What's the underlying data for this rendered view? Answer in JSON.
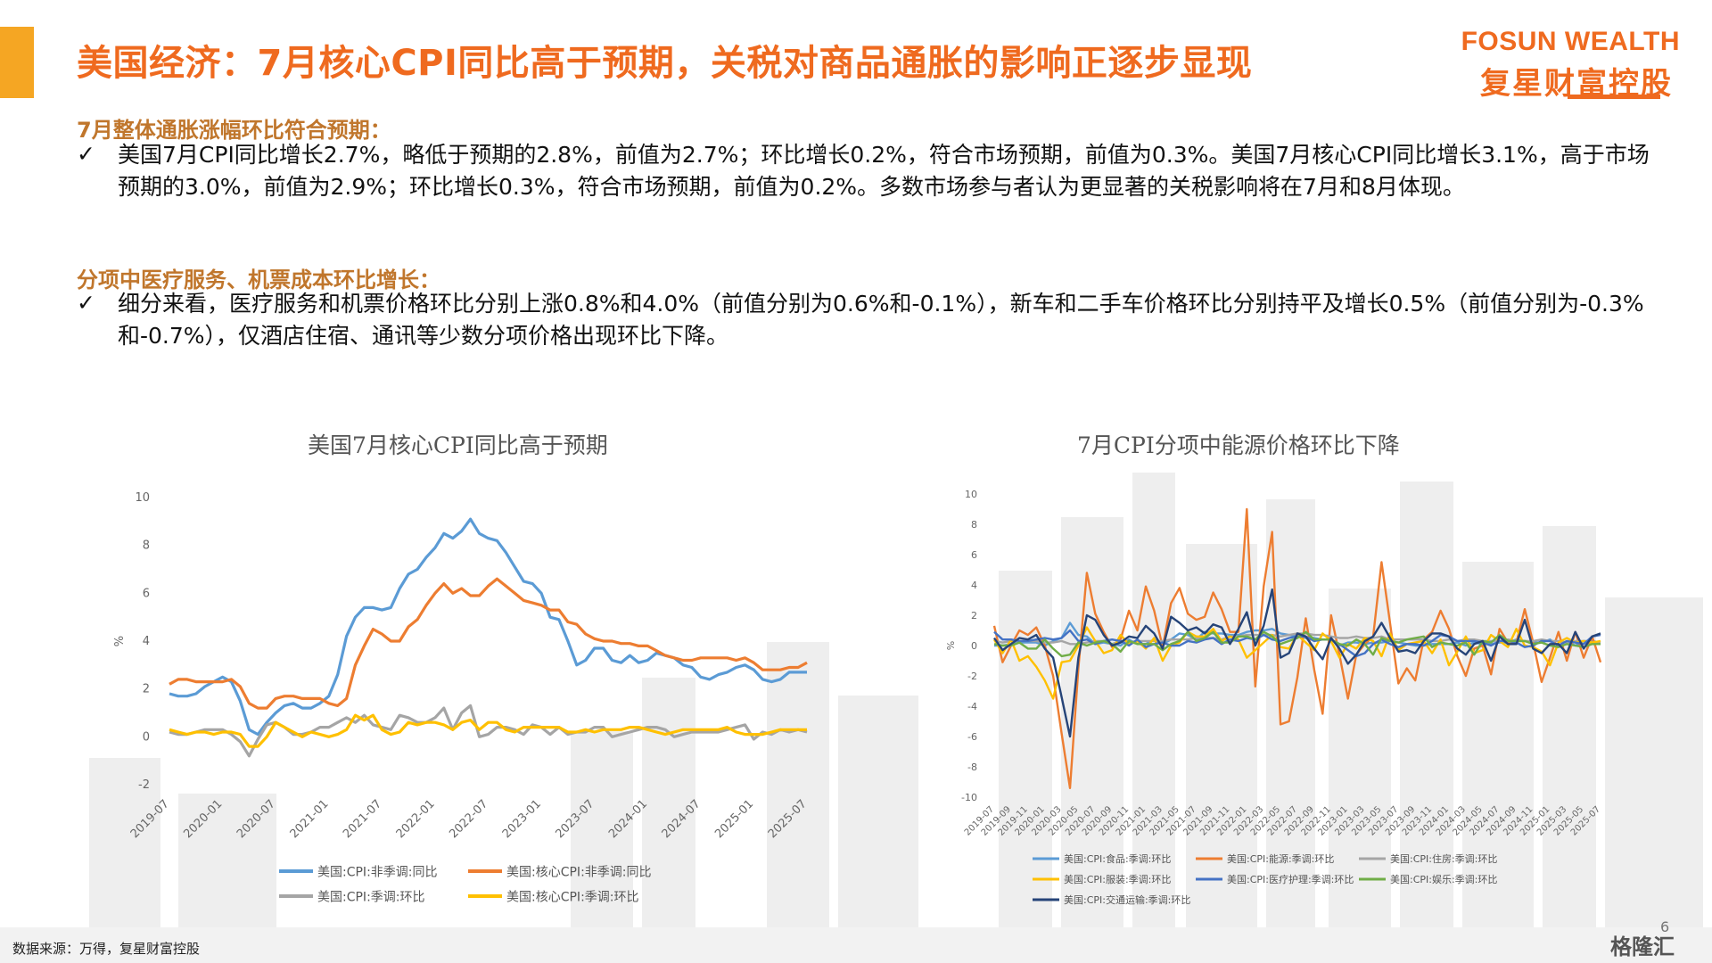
{
  "header": {
    "title": "美国经济：7月核心CPI同比高于预期，关税对商品通胀的影响正逐步显现",
    "brand_en": "FOSUN WEALTH",
    "brand_cn": "复星财富控股",
    "accent_color": "#ef6a1f",
    "bar_color": "#f5a623"
  },
  "sections": [
    {
      "heading": "7月整体通胀涨幅环比符合预期：",
      "check": "✓",
      "text": "美国7月CPI同比增长2.7%，略低于预期的2.8%，前值为2.7%；环比增长0.2%，符合市场预期，前值为0.3%。美国7月核心CPI同比增长3.1%，高于市场预期的3.0%，前值为2.9%；环比增长0.3%，符合市场预期，前值为0.2%。多数市场参与者认为更显著的关税影响将在7月和8月体现。"
    },
    {
      "heading": "分项中医疗服务、机票成本环比增长：",
      "check": "✓",
      "text": "细分来看，医疗服务和机票价格环比分别上涨0.8%和4.0%（前值分别为0.6%和-0.1%），新车和二手车价格环比分别持平及增长0.5%（前值分别为-0.3%和-0.7%），仅酒店住宿、通讯等少数分项价格出现环比下降。"
    }
  ],
  "chart_data": [
    {
      "type": "line",
      "title": "美国7月核心CPI同比高于预期",
      "ylabel": "%",
      "ylim": [
        -2,
        10
      ],
      "yticks": [
        "-2",
        "0",
        "2",
        "4",
        "6",
        "8",
        "10"
      ],
      "x_start": "2019-07",
      "x_end": "2025-07",
      "x_ticks": [
        "2019-07",
        "2020-01",
        "2020-07",
        "2021-01",
        "2021-07",
        "2022-01",
        "2022-07",
        "2023-01",
        "2023-07",
        "2024-01",
        "2024-07",
        "2025-01",
        "2025-07"
      ],
      "legend_position": "bottom",
      "series": [
        {
          "name": "美国:CPI:非季调:同比",
          "color": "#5b9bd5",
          "values": [
            1.8,
            1.7,
            1.7,
            1.8,
            2.1,
            2.3,
            2.5,
            2.3,
            1.5,
            0.3,
            0.1,
            0.6,
            1.0,
            1.3,
            1.4,
            1.2,
            1.2,
            1.4,
            1.7,
            2.6,
            4.2,
            5.0,
            5.4,
            5.4,
            5.3,
            5.4,
            6.2,
            6.8,
            7.0,
            7.5,
            7.9,
            8.5,
            8.3,
            8.6,
            9.1,
            8.5,
            8.3,
            8.2,
            7.7,
            7.1,
            6.5,
            6.4,
            6.0,
            5.0,
            4.9,
            4.0,
            3.0,
            3.2,
            3.7,
            3.7,
            3.2,
            3.1,
            3.4,
            3.1,
            3.2,
            3.5,
            3.4,
            3.3,
            3.0,
            2.9,
            2.5,
            2.4,
            2.6,
            2.7,
            2.9,
            3.0,
            2.8,
            2.4,
            2.3,
            2.4,
            2.7,
            2.7,
            2.7
          ]
        },
        {
          "name": "美国:核心CPI:非季调:同比",
          "color": "#ed7d31",
          "values": [
            2.2,
            2.4,
            2.4,
            2.3,
            2.3,
            2.3,
            2.3,
            2.4,
            2.1,
            1.4,
            1.2,
            1.2,
            1.6,
            1.7,
            1.7,
            1.6,
            1.6,
            1.6,
            1.4,
            1.3,
            1.6,
            3.0,
            3.8,
            4.5,
            4.3,
            4.0,
            4.0,
            4.6,
            4.9,
            5.5,
            6.0,
            6.4,
            6.0,
            6.2,
            5.9,
            5.9,
            6.3,
            6.6,
            6.3,
            6.0,
            5.7,
            5.6,
            5.5,
            5.3,
            5.3,
            4.8,
            4.7,
            4.3,
            4.1,
            4.0,
            4.0,
            3.9,
            3.9,
            3.8,
            3.8,
            3.6,
            3.4,
            3.3,
            3.2,
            3.2,
            3.3,
            3.3,
            3.3,
            3.3,
            3.2,
            3.3,
            3.1,
            2.8,
            2.8,
            2.8,
            2.9,
            2.9,
            3.1
          ]
        },
        {
          "name": "美国:CPI:季调:环比",
          "color": "#a5a5a5",
          "values": [
            0.2,
            0.1,
            0.1,
            0.2,
            0.3,
            0.3,
            0.3,
            0.1,
            -0.2,
            -0.8,
            -0.1,
            0.5,
            0.6,
            0.4,
            0.1,
            0.1,
            0.2,
            0.4,
            0.4,
            0.6,
            0.8,
            0.6,
            0.9,
            0.5,
            0.4,
            0.3,
            0.9,
            0.8,
            0.6,
            0.6,
            0.8,
            1.2,
            0.3,
            1.0,
            1.3,
            0.0,
            0.1,
            0.4,
            0.4,
            0.3,
            0.1,
            0.5,
            0.4,
            0.1,
            0.4,
            0.1,
            0.2,
            0.2,
            0.4,
            0.4,
            0.0,
            0.1,
            0.2,
            0.3,
            0.4,
            0.4,
            0.3,
            0.0,
            0.1,
            0.2,
            0.2,
            0.2,
            0.2,
            0.3,
            0.4,
            0.5,
            -0.1,
            0.2,
            0.1,
            0.3,
            0.2,
            0.3,
            0.2
          ]
        },
        {
          "name": "美国:核心CPI:季调:环比",
          "color": "#ffc000",
          "values": [
            0.3,
            0.2,
            0.1,
            0.2,
            0.2,
            0.1,
            0.2,
            0.2,
            0.1,
            -0.4,
            -0.4,
            0.0,
            0.6,
            0.4,
            0.2,
            0.0,
            0.2,
            0.1,
            0.0,
            0.1,
            0.3,
            0.9,
            0.7,
            0.9,
            0.3,
            0.1,
            0.2,
            0.6,
            0.5,
            0.6,
            0.6,
            0.5,
            0.3,
            0.6,
            0.7,
            0.3,
            0.6,
            0.6,
            0.3,
            0.2,
            0.4,
            0.4,
            0.4,
            0.4,
            0.4,
            0.2,
            0.2,
            0.3,
            0.2,
            0.3,
            0.3,
            0.3,
            0.4,
            0.4,
            0.3,
            0.2,
            0.1,
            0.2,
            0.3,
            0.3,
            0.3,
            0.3,
            0.3,
            0.4,
            0.2,
            0.1,
            0.1,
            0.1,
            0.2,
            0.3,
            0.3,
            0.3,
            0.3
          ]
        }
      ]
    },
    {
      "type": "line",
      "title": "7月CPI分项中能源价格环比下降",
      "ylabel": "%",
      "ylim": [
        -10,
        10
      ],
      "yticks": [
        "-10",
        "-8",
        "-6",
        "-4",
        "-2",
        "0",
        "2",
        "4",
        "6",
        "8",
        "10"
      ],
      "x_start": "2019-07",
      "x_end": "2025-07",
      "x_ticks": [
        "2019-07",
        "2019-09",
        "2019-11",
        "2020-01",
        "2020-03",
        "2020-05",
        "2020-07",
        "2020-09",
        "2020-11",
        "2021-01",
        "2021-03",
        "2021-05",
        "2021-07",
        "2021-09",
        "2021-11",
        "2022-01",
        "2022-03",
        "2022-05",
        "2022-07",
        "2022-09",
        "2022-11",
        "2023-01",
        "2023-03",
        "2023-05",
        "2023-07",
        "2023-09",
        "2023-11",
        "2024-01",
        "2024-03",
        "2024-05",
        "2024-07",
        "2024-09",
        "2024-11",
        "2025-01",
        "2025-03",
        "2025-05",
        "2025-07"
      ],
      "legend_position": "bottom",
      "series": [
        {
          "name": "美国:CPI:食品:季调:环比",
          "color": "#5b9bd5",
          "values": [
            0.0,
            0.0,
            0.1,
            0.2,
            0.2,
            0.2,
            0.0,
            0.3,
            0.5,
            1.5,
            0.7,
            0.6,
            0.1,
            0.2,
            0.1,
            0.0,
            0.4,
            0.1,
            0.1,
            0.4,
            0.1,
            0.4,
            0.8,
            0.7,
            0.4,
            0.9,
            0.8,
            0.8,
            0.7,
            0.7,
            0.9,
            1.0,
            1.0,
            1.1,
            0.8,
            0.7,
            0.6,
            0.5,
            0.5,
            0.4,
            0.4,
            0.0,
            0.2,
            0.2,
            0.1,
            0.2,
            0.2,
            0.3,
            0.2,
            0.1,
            0.0,
            0.0,
            0.1,
            0.1,
            0.1,
            0.2,
            0.0,
            0.2,
            0.1,
            0.1,
            0.2,
            0.2,
            0.4,
            0.3,
            0.2,
            0.2,
            0.4,
            0.0,
            0.3,
            0.0,
            0.3,
            0.3,
            0.2
          ]
        },
        {
          "name": "美国:CPI:能源:季调:环比",
          "color": "#ed7d31",
          "values": [
            1.3,
            -1.1,
            0.0,
            1.0,
            0.7,
            1.2,
            0.0,
            -2.0,
            -5.8,
            -9.4,
            -1.5,
            4.8,
            2.1,
            0.9,
            -0.1,
            0.4,
            2.3,
            1.0,
            3.9,
            2.3,
            -0.1,
            2.8,
            3.8,
            2.1,
            1.7,
            1.9,
            3.5,
            2.4,
            0.9,
            0.9,
            9.0,
            -2.7,
            3.9,
            7.5,
            -5.2,
            -5.0,
            -2.1,
            1.8,
            -1.6,
            -4.5,
            2.0,
            -0.6,
            -3.5,
            -0.6,
            0.1,
            0.6,
            5.5,
            1.5,
            -2.5,
            -1.5,
            -2.3,
            0.4,
            0.9,
            2.3,
            1.1,
            -0.7,
            -2.0,
            -0.2,
            0.0,
            -1.9,
            1.1,
            0.2,
            0.2,
            2.4,
            0.2,
            -2.4,
            -0.8,
            0.9,
            -1.0,
            0.9,
            -0.8,
            0.6,
            -1.1
          ]
        },
        {
          "name": "美国:CPI:住房:季调:环比",
          "color": "#a5a5a5",
          "values": [
            0.3,
            0.2,
            0.3,
            0.3,
            0.3,
            0.3,
            0.2,
            0.2,
            0.3,
            0.1,
            0.1,
            0.2,
            0.3,
            0.3,
            0.1,
            0.3,
            0.2,
            0.3,
            0.3,
            0.3,
            0.3,
            0.4,
            0.4,
            0.4,
            0.5,
            0.5,
            0.5,
            0.4,
            0.6,
            0.6,
            0.7,
            0.7,
            0.7,
            0.7,
            0.6,
            0.7,
            0.8,
            0.8,
            0.7,
            0.7,
            0.6,
            0.5,
            0.5,
            0.6,
            0.5,
            0.5,
            0.6,
            0.4,
            0.4,
            0.4,
            0.4,
            0.4,
            0.3,
            0.3,
            0.4,
            0.3,
            0.4,
            0.4,
            0.3,
            0.3,
            0.3,
            0.4,
            0.3,
            0.3,
            0.3,
            0.4,
            0.3,
            0.3,
            0.2,
            0.3,
            0.3,
            0.2,
            0.2
          ]
        },
        {
          "name": "美国:CPI:服装:季调:环比",
          "color": "#ffc000",
          "values": [
            0.4,
            -0.5,
            0.4,
            -1.0,
            -0.7,
            -1.4,
            -2.3,
            -3.5,
            -1.1,
            -1.0,
            0.0,
            1.2,
            0.3,
            -0.5,
            -0.3,
            0.7,
            0.1,
            0.3,
            -0.2,
            0.5,
            -1.0,
            0.0,
            0.2,
            0.9,
            0.6,
            0.6,
            1.1,
            0.3,
            0.6,
            0.4,
            -0.8,
            -0.3,
            0.2,
            0.7,
            -0.1,
            -0.2,
            0.7,
            0.2,
            -0.3,
            0.8,
            0.3,
            -0.8,
            0.1,
            -0.2,
            0.5,
            0.3,
            -0.7,
            0.8,
            -0.3,
            0.1,
            0.2,
            0.3,
            -0.5,
            0.4,
            -1.3,
            -0.4,
            0.6,
            -0.5,
            -0.3,
            0.7,
            0.3,
            -0.1,
            1.1,
            0.0,
            -0.1,
            -0.4,
            -1.3,
            0.2,
            0.5,
            0.2,
            0.3,
            0.2,
            0.3
          ]
        },
        {
          "name": "美国:CPI:医疗护理:季调:环比",
          "color": "#4472c4",
          "values": [
            0.9,
            0.4,
            0.4,
            0.3,
            0.3,
            0.4,
            0.5,
            0.4,
            0.5,
            1.0,
            0.3,
            0.4,
            0.1,
            0.3,
            0.4,
            0.3,
            0.0,
            0.4,
            -0.1,
            0.1,
            0.2,
            0.0,
            0.0,
            0.3,
            0.2,
            0.4,
            0.5,
            0.1,
            0.4,
            0.3,
            0.5,
            0.4,
            0.7,
            0.4,
            0.3,
            0.5,
            0.6,
            0.6,
            0.3,
            0.4,
            0.4,
            0.1,
            -0.3,
            -0.7,
            -0.5,
            0.1,
            0.4,
            0.1,
            -0.1,
            0.1,
            0.1,
            0.0,
            0.3,
            0.7,
            0.6,
            0.3,
            0.3,
            0.3,
            0.2,
            0.0,
            0.3,
            0.3,
            0.2,
            -0.1,
            0.0,
            0.3,
            0.3,
            0.0,
            0.3,
            0.2,
            0.1,
            0.6,
            0.7
          ]
        },
        {
          "name": "美国:CPI:娱乐:季调:环比",
          "color": "#70ad47",
          "values": [
            0.1,
            0.0,
            0.0,
            0.2,
            -0.2,
            -0.2,
            0.4,
            -0.2,
            -0.7,
            -0.6,
            0.2,
            0.0,
            0.2,
            0.3,
            0.1,
            -0.4,
            0.3,
            0.1,
            0.1,
            0.1,
            -0.3,
            0.1,
            0.3,
            0.9,
            0.3,
            0.5,
            0.9,
            0.2,
            0.2,
            0.6,
            0.6,
            0.4,
            0.9,
            0.6,
            0.1,
            0.3,
            0.5,
            0.9,
            0.4,
            0.4,
            0.4,
            0.1,
            0.0,
            0.4,
            0.1,
            -0.6,
            0.5,
            0.3,
            0.2,
            0.4,
            0.5,
            0.6,
            -0.1,
            0.2,
            0.1,
            0.0,
            0.2,
            -0.6,
            0.3,
            0.2,
            0.7,
            0.3,
            0.3,
            0.3,
            0.1,
            0.2,
            0.0,
            -0.1,
            0.1,
            0.0,
            -0.1,
            0.1,
            0.1
          ]
        },
        {
          "name": "美国:CPI:交通运输:季调:环比",
          "color": "#264478",
          "values": [
            0.5,
            -0.3,
            0.1,
            0.5,
            0.4,
            0.7,
            -0.2,
            -0.8,
            -3.4,
            -6.0,
            -0.8,
            2.0,
            1.7,
            0.7,
            0.0,
            0.2,
            0.6,
            0.5,
            1.3,
            0.8,
            -0.2,
            1.9,
            1.5,
            1.0,
            1.2,
            0.8,
            1.4,
            1.2,
            0.1,
            1.1,
            2.2,
            0.0,
            1.3,
            3.7,
            -0.8,
            -0.5,
            0.8,
            0.6,
            -0.2,
            -0.9,
            0.5,
            -0.2,
            -1.2,
            -0.6,
            0.3,
            0.6,
            1.5,
            0.5,
            -0.4,
            -0.3,
            -0.5,
            0.3,
            0.8,
            0.8,
            0.6,
            -0.2,
            -0.6,
            0.1,
            0.3,
            -1.0,
            0.6,
            0.1,
            0.1,
            1.7,
            -0.2,
            -0.5,
            0.1,
            0.1,
            -0.5,
            0.9,
            -0.2,
            0.6,
            0.8
          ]
        }
      ]
    }
  ],
  "footer": {
    "source": "数据来源：万得，复星财富控股",
    "page_number": "6",
    "watermark": "格隆汇"
  }
}
